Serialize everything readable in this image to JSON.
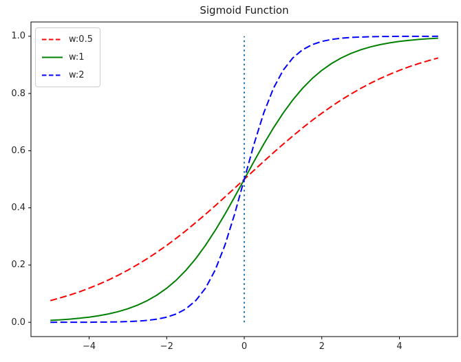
{
  "chart_data": {
    "type": "line",
    "title": "Sigmoid Function",
    "xlabel": "",
    "ylabel": "",
    "xlim": [
      -5.5,
      5.5
    ],
    "ylim": [
      -0.05,
      1.05
    ],
    "grid": false,
    "background_color": "#ffffff",
    "spine_color": "#000000",
    "text_color": "#262626",
    "xticks": [
      -4,
      -2,
      0,
      2,
      4
    ],
    "xtick_labels": [
      "−4",
      "−2",
      "0",
      "2",
      "4"
    ],
    "yticks": [
      0.0,
      0.2,
      0.4,
      0.6,
      0.8,
      1.0
    ],
    "ytick_labels": [
      "0.0",
      "0.2",
      "0.4",
      "0.6",
      "0.8",
      "1.0"
    ],
    "x": [
      -5,
      -4.75,
      -4.5,
      -4.25,
      -4,
      -3.75,
      -3.5,
      -3.25,
      -3,
      -2.75,
      -2.5,
      -2.25,
      -2,
      -1.75,
      -1.5,
      -1.25,
      -1,
      -0.75,
      -0.5,
      -0.25,
      0,
      0.25,
      0.5,
      0.75,
      1,
      1.25,
      1.5,
      1.75,
      2,
      2.25,
      2.5,
      2.75,
      3,
      3.25,
      3.5,
      3.75,
      4,
      4.25,
      4.5,
      4.75,
      5
    ],
    "series": [
      {
        "name": "w:0.5",
        "color": "#ff0000",
        "style": "dashed",
        "values": [
          0.0759,
          0.0851,
          0.0953,
          0.1067,
          0.1192,
          0.133,
          0.148,
          0.1645,
          0.1824,
          0.2019,
          0.2227,
          0.2451,
          0.2689,
          0.2942,
          0.3208,
          0.3486,
          0.3775,
          0.4073,
          0.4378,
          0.4688,
          0.5,
          0.5312,
          0.5622,
          0.5927,
          0.6225,
          0.6514,
          0.6792,
          0.7058,
          0.7311,
          0.7549,
          0.7773,
          0.7981,
          0.8176,
          0.8355,
          0.852,
          0.867,
          0.8808,
          0.8933,
          0.9047,
          0.9149,
          0.9241
        ]
      },
      {
        "name": "w:1",
        "color": "#008000",
        "style": "solid",
        "values": [
          0.0067,
          0.0086,
          0.011,
          0.0141,
          0.018,
          0.023,
          0.0293,
          0.0373,
          0.0474,
          0.0601,
          0.0759,
          0.0953,
          0.1192,
          0.148,
          0.1824,
          0.2227,
          0.2689,
          0.3208,
          0.3775,
          0.4378,
          0.5,
          0.5622,
          0.6225,
          0.6792,
          0.7311,
          0.7773,
          0.8176,
          0.852,
          0.8808,
          0.9047,
          0.9241,
          0.9399,
          0.9526,
          0.9627,
          0.9707,
          0.977,
          0.982,
          0.9859,
          0.989,
          0.9914,
          0.9933
        ]
      },
      {
        "name": "w:2",
        "color": "#0000ff",
        "style": "dashed",
        "values": [
          0.0,
          0.0001,
          0.0001,
          0.0002,
          0.0003,
          0.0006,
          0.0009,
          0.0015,
          0.0025,
          0.0041,
          0.0067,
          0.011,
          0.018,
          0.0293,
          0.0474,
          0.0759,
          0.1192,
          0.1824,
          0.2689,
          0.3775,
          0.5,
          0.6225,
          0.7311,
          0.8176,
          0.8808,
          0.9241,
          0.9526,
          0.9707,
          0.982,
          0.989,
          0.9933,
          0.9959,
          0.9975,
          0.9985,
          0.9991,
          0.9994,
          0.9997,
          0.9998,
          0.9999,
          0.9999,
          1.0
        ]
      }
    ],
    "vline": {
      "x": 0,
      "y_from": 0,
      "y_to": 1,
      "color": "#1f77b4",
      "style": "dotted"
    },
    "legend": {
      "position": "upper left",
      "entries": [
        "w:0.5",
        "w:1",
        "w:2"
      ]
    }
  }
}
